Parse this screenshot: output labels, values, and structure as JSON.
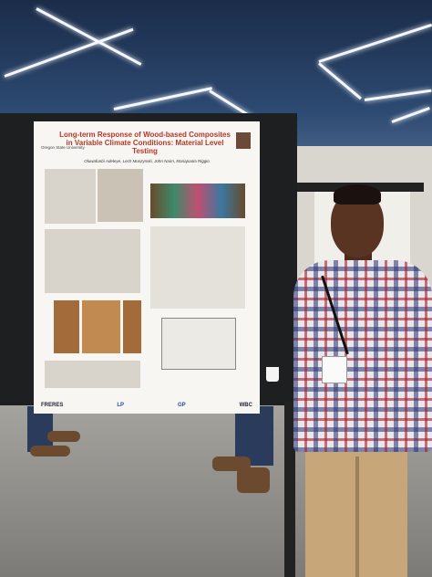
{
  "poster": {
    "title": "Long-term Response of Wood-based Composites in Variable Climate Conditions: Material Level Testing",
    "authors": "Oluwafunbi Adeleye, Lech Muszynski, John Nairn, Mariapaola Riggio",
    "institution": "Oregon State University",
    "logos": [
      "FRERES",
      "LP",
      "GP",
      "WBC"
    ]
  }
}
